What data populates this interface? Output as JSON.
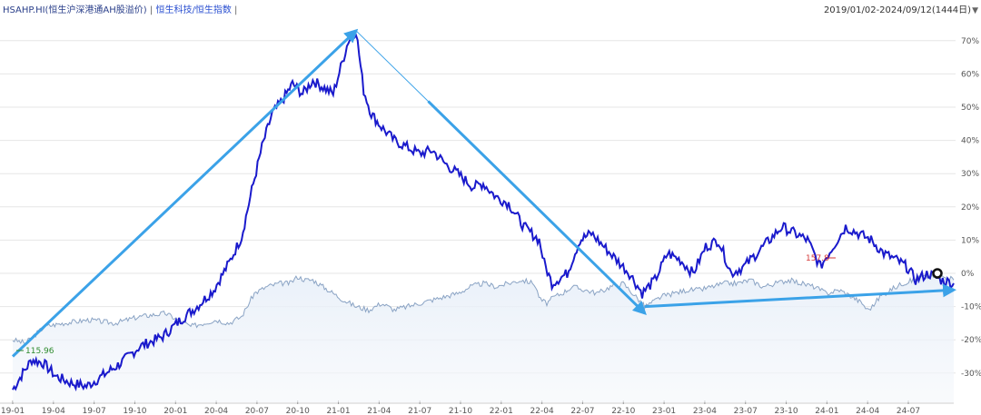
{
  "header": {
    "symbol": "HSAHP.HI(恒生沪深港通AH股溢价)",
    "separator": "|",
    "compare": "恒生科技/恒生指数",
    "separator2": "|",
    "date_range": "2019/01/02-2024/09/12(1444日)",
    "dropdown_icon": "triangle-down-icon"
  },
  "colors": {
    "main_line": "#1a1acc",
    "secondary_line": "#8aa3c4",
    "arrow": "#3ba2e8",
    "grid": "#e6e6e6",
    "low_label": "#2e8b2e",
    "high_label": "#d43a3a"
  },
  "chart_data": {
    "type": "line",
    "x_ticks": [
      "19-01",
      "19-04",
      "19-07",
      "19-10",
      "20-01",
      "20-04",
      "20-07",
      "20-10",
      "21-01",
      "21-04",
      "21-07",
      "21-10",
      "22-01",
      "22-04",
      "22-07",
      "22-10",
      "23-01",
      "23-04",
      "23-07",
      "23-10",
      "24-01",
      "24-04",
      "24-07"
    ],
    "y_ticks": [
      "70%",
      "60%",
      "50%",
      "40%",
      "30%",
      "20%",
      "10%",
      "0%",
      "-10%",
      "-20%",
      "-30%"
    ],
    "ylim": [
      -35,
      73
    ],
    "annotations": [
      {
        "text": "115.96",
        "kind": "low"
      },
      {
        "text": "157.8",
        "kind": "high"
      }
    ],
    "series": [
      {
        "values": [
          [
            0,
            -35
          ],
          [
            8,
            -30
          ],
          [
            15,
            -26
          ],
          [
            24,
            -27
          ],
          [
            34,
            -31
          ],
          [
            46,
            -33
          ],
          [
            58,
            -34
          ],
          [
            70,
            -31
          ],
          [
            85,
            -27
          ],
          [
            100,
            -22
          ],
          [
            118,
            -19
          ],
          [
            132,
            -14
          ],
          [
            145,
            -10
          ],
          [
            158,
            -5
          ],
          [
            170,
            3
          ],
          [
            180,
            11
          ],
          [
            188,
            25
          ],
          [
            196,
            38
          ],
          [
            204,
            48
          ],
          [
            212,
            52
          ],
          [
            220,
            57
          ],
          [
            228,
            54
          ],
          [
            236,
            58
          ],
          [
            244,
            56
          ],
          [
            252,
            54
          ],
          [
            258,
            62
          ],
          [
            264,
            70
          ],
          [
            270,
            73
          ],
          [
            276,
            55
          ],
          [
            282,
            48
          ],
          [
            290,
            44
          ],
          [
            300,
            40
          ],
          [
            310,
            38
          ],
          [
            320,
            36
          ],
          [
            330,
            37
          ],
          [
            340,
            33
          ],
          [
            350,
            30
          ],
          [
            356,
            28
          ],
          [
            362,
            26
          ],
          [
            370,
            27
          ],
          [
            380,
            23
          ],
          [
            390,
            21
          ],
          [
            402,
            14
          ],
          [
            414,
            10
          ],
          [
            418,
            3
          ],
          [
            424,
            -3
          ],
          [
            428,
            -2
          ],
          [
            436,
            0
          ],
          [
            446,
            10
          ],
          [
            455,
            12
          ],
          [
            465,
            8
          ],
          [
            475,
            4
          ],
          [
            485,
            0
          ],
          [
            495,
            -6
          ],
          [
            505,
            -2
          ],
          [
            515,
            6
          ],
          [
            525,
            4
          ],
          [
            535,
            0
          ],
          [
            545,
            8
          ],
          [
            555,
            10
          ],
          [
            565,
            0
          ],
          [
            575,
            2
          ],
          [
            585,
            6
          ],
          [
            595,
            10
          ],
          [
            605,
            14
          ],
          [
            615,
            12
          ],
          [
            625,
            10
          ],
          [
            635,
            2
          ],
          [
            645,
            8
          ],
          [
            655,
            14
          ],
          [
            665,
            12
          ],
          [
            675,
            10
          ],
          [
            685,
            6
          ],
          [
            695,
            4
          ],
          [
            703,
            2
          ],
          [
            710,
            -2
          ],
          [
            720,
            0
          ],
          [
            730,
            -2
          ],
          [
            740,
            -3
          ]
        ]
      },
      {
        "values": [
          [
            0,
            -20
          ],
          [
            10,
            -21
          ],
          [
            25,
            -16
          ],
          [
            40,
            -15
          ],
          [
            60,
            -14
          ],
          [
            80,
            -15
          ],
          [
            100,
            -13
          ],
          [
            120,
            -12
          ],
          [
            140,
            -16
          ],
          [
            160,
            -14
          ],
          [
            170,
            -15
          ],
          [
            180,
            -13
          ],
          [
            190,
            -6
          ],
          [
            200,
            -4
          ],
          [
            210,
            -3
          ],
          [
            218,
            -3
          ],
          [
            224,
            -1
          ],
          [
            230,
            -2
          ],
          [
            236,
            -2
          ],
          [
            244,
            -4
          ],
          [
            252,
            -6
          ],
          [
            260,
            -8
          ],
          [
            270,
            -10
          ],
          [
            280,
            -11
          ],
          [
            290,
            -9
          ],
          [
            300,
            -11
          ],
          [
            310,
            -10
          ],
          [
            320,
            -9
          ],
          [
            330,
            -8
          ],
          [
            340,
            -7
          ],
          [
            350,
            -6
          ],
          [
            360,
            -4
          ],
          [
            370,
            -3
          ],
          [
            380,
            -4
          ],
          [
            390,
            -3
          ],
          [
            400,
            -2
          ],
          [
            410,
            -3
          ],
          [
            415,
            -8
          ],
          [
            420,
            -9
          ],
          [
            426,
            -7
          ],
          [
            432,
            -6
          ],
          [
            440,
            -4
          ],
          [
            450,
            -5
          ],
          [
            460,
            -6
          ],
          [
            470,
            -4
          ],
          [
            480,
            -3
          ],
          [
            490,
            -7
          ],
          [
            497,
            -10
          ],
          [
            502,
            -9
          ],
          [
            510,
            -7
          ],
          [
            520,
            -6
          ],
          [
            530,
            -5
          ],
          [
            540,
            -5
          ],
          [
            550,
            -4
          ],
          [
            560,
            -3
          ],
          [
            570,
            -3
          ],
          [
            580,
            -2
          ],
          [
            590,
            -4
          ],
          [
            600,
            -3
          ],
          [
            610,
            -2
          ],
          [
            620,
            -3
          ],
          [
            630,
            -4
          ],
          [
            640,
            -6
          ],
          [
            650,
            -5
          ],
          [
            660,
            -7
          ],
          [
            668,
            -9
          ],
          [
            672,
            -11
          ],
          [
            676,
            -10
          ],
          [
            682,
            -7
          ],
          [
            690,
            -5
          ],
          [
            700,
            -3
          ],
          [
            708,
            -2
          ],
          [
            716,
            -1
          ],
          [
            724,
            -1
          ],
          [
            732,
            -1
          ],
          [
            740,
            -2
          ]
        ]
      }
    ],
    "arrows": [
      [
        [
          0,
          -25
        ],
        [
          270,
          73
        ]
      ],
      [
        [
          270,
          73
        ],
        [
          497,
          -12
        ]
      ],
      [
        [
          497,
          -10
        ],
        [
          740,
          -5
        ]
      ]
    ]
  }
}
